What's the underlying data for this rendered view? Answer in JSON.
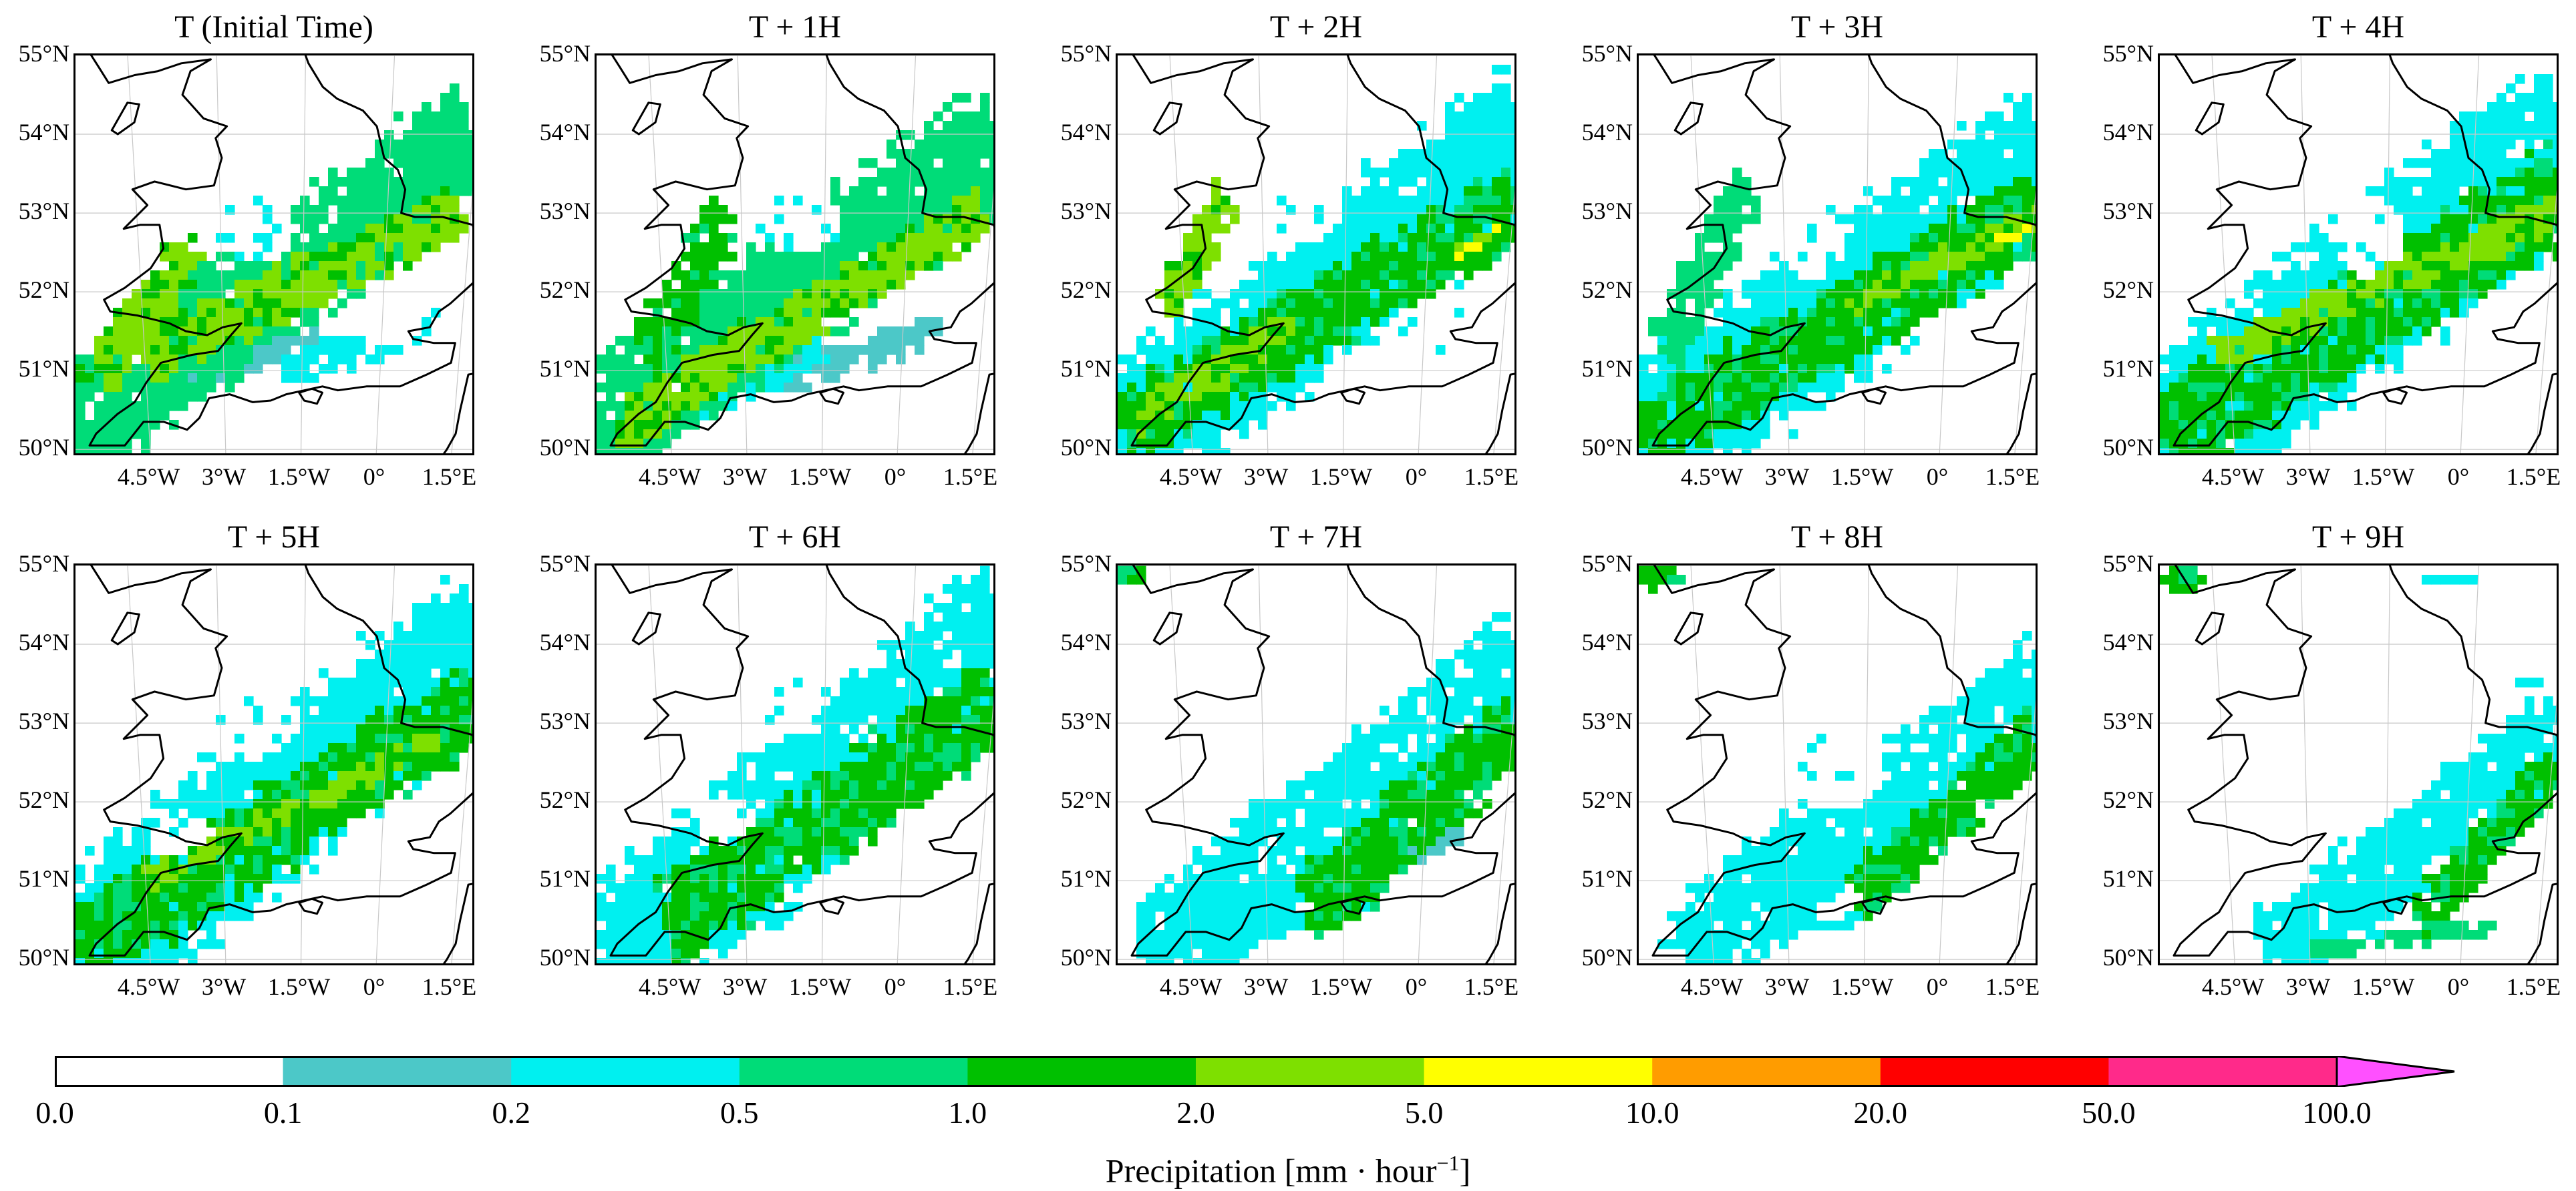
{
  "panels": [
    {
      "title": "T (Initial Time)",
      "rain": [
        {
          "k": "band",
          "x1": -5.9,
          "y1": 50.3,
          "x2": 1.8,
          "y2": 53.9,
          "w": 1.15,
          "lv": 3,
          "a": 0.95
        },
        {
          "k": "band",
          "x1": -4.5,
          "y1": 51.2,
          "x2": 1.6,
          "y2": 53.0,
          "w": 0.55,
          "lv": 5,
          "a": 0.9
        },
        {
          "k": "band",
          "x1": -5.5,
          "y1": 51.0,
          "x2": -3.6,
          "y2": 52.6,
          "w": 0.5,
          "lv": 5,
          "a": 0.9
        },
        {
          "k": "band",
          "x1": -5.9,
          "y1": 51.0,
          "x2": -3.8,
          "y2": 51.6,
          "w": 0.3,
          "lv": 4,
          "a": 0.8
        },
        {
          "k": "band",
          "x1": -1.8,
          "y1": 51.0,
          "x2": 1.2,
          "y2": 51.6,
          "w": 0.35,
          "lv": 2,
          "a": 0.9
        },
        {
          "k": "band",
          "x1": -3.8,
          "y1": 50.8,
          "x2": -1.2,
          "y2": 51.4,
          "w": 0.25,
          "lv": 1,
          "a": 0.9
        },
        {
          "k": "hole",
          "x": -2.4,
          "y": 52.8,
          "rx": 0.8,
          "ry": 0.45
        },
        {
          "k": "hole",
          "x": 0.2,
          "y": 51.6,
          "rx": 0.7,
          "ry": 0.3
        }
      ]
    },
    {
      "title": "T + 1H",
      "rain": [
        {
          "k": "band",
          "x1": -5.9,
          "y1": 50.3,
          "x2": 1.9,
          "y2": 53.8,
          "w": 1.2,
          "lv": 3,
          "a": 0.95
        },
        {
          "k": "band",
          "x1": -5.5,
          "y1": 50.3,
          "x2": 1.6,
          "y2": 53.0,
          "w": 0.5,
          "lv": 5,
          "a": 0.95
        },
        {
          "k": "band",
          "x1": -5.0,
          "y1": 51.2,
          "x2": -3.4,
          "y2": 53.0,
          "w": 0.5,
          "lv": 4,
          "a": 0.9
        },
        {
          "k": "band",
          "x1": -2.2,
          "y1": 50.9,
          "x2": 0.8,
          "y2": 51.5,
          "w": 0.3,
          "lv": 1,
          "a": 0.9
        },
        {
          "k": "band",
          "x1": -4.0,
          "y1": 50.5,
          "x2": -1.5,
          "y2": 51.3,
          "w": 0.3,
          "lv": 2,
          "a": 0.9
        },
        {
          "k": "hole",
          "x": -2.0,
          "y": 52.9,
          "rx": 0.9,
          "ry": 0.4
        }
      ]
    },
    {
      "title": "T + 2H",
      "rain": [
        {
          "k": "band",
          "x1": -6.0,
          "y1": 50.0,
          "x2": 2.0,
          "y2": 53.9,
          "w": 1.45,
          "lv": 2,
          "a": 0.95
        },
        {
          "k": "band",
          "x1": -5.8,
          "y1": 50.3,
          "x2": 1.9,
          "y2": 53.1,
          "w": 0.75,
          "lv": 4,
          "a": 0.95
        },
        {
          "k": "band",
          "x1": -5.6,
          "y1": 50.4,
          "x2": -2.5,
          "y2": 51.6,
          "w": 0.35,
          "lv": 5,
          "a": 0.95
        },
        {
          "k": "band",
          "x1": 0.8,
          "y1": 52.5,
          "x2": 1.7,
          "y2": 52.8,
          "w": 0.12,
          "lv": 6,
          "a": 0.9
        },
        {
          "k": "band",
          "x1": -5.0,
          "y1": 51.8,
          "x2": -3.8,
          "y2": 53.2,
          "w": 0.4,
          "lv": 5,
          "a": 0.9
        },
        {
          "k": "hole",
          "x": -2.2,
          "y": 53.0,
          "rx": 0.7,
          "ry": 0.35
        },
        {
          "k": "hole",
          "x": 0.3,
          "y": 51.5,
          "rx": 1.0,
          "ry": 0.3
        }
      ]
    },
    {
      "title": "T + 3H",
      "rain": [
        {
          "k": "band",
          "x1": -6.0,
          "y1": 50.0,
          "x2": 2.0,
          "y2": 53.6,
          "w": 1.5,
          "lv": 2,
          "a": 0.95
        },
        {
          "k": "band",
          "x1": -5.8,
          "y1": 50.2,
          "x2": 1.9,
          "y2": 53.0,
          "w": 0.8,
          "lv": 4,
          "a": 0.95
        },
        {
          "k": "band",
          "x1": -2.0,
          "y1": 51.8,
          "x2": 1.9,
          "y2": 52.9,
          "w": 0.25,
          "lv": 5,
          "a": 0.95
        },
        {
          "k": "band",
          "x1": 1.0,
          "y1": 52.6,
          "x2": 1.8,
          "y2": 52.8,
          "w": 0.1,
          "lv": 6,
          "a": 0.9
        },
        {
          "k": "band",
          "x1": -5.5,
          "y1": 51.3,
          "x2": -3.8,
          "y2": 53.3,
          "w": 0.5,
          "lv": 3,
          "a": 0.9
        },
        {
          "k": "hole",
          "x": -2.5,
          "y": 52.7,
          "rx": 0.7,
          "ry": 0.55
        }
      ]
    },
    {
      "title": "T + 4H",
      "rain": [
        {
          "k": "band",
          "x1": -6.0,
          "y1": 50.0,
          "x2": 2.0,
          "y2": 53.9,
          "w": 1.6,
          "lv": 2,
          "a": 0.95
        },
        {
          "k": "band",
          "x1": -5.8,
          "y1": 50.2,
          "x2": 1.9,
          "y2": 53.2,
          "w": 0.95,
          "lv": 4,
          "a": 0.95
        },
        {
          "k": "band",
          "x1": -4.8,
          "y1": 51.2,
          "x2": 1.9,
          "y2": 53.0,
          "w": 0.35,
          "lv": 5,
          "a": 0.9
        },
        {
          "k": "hole",
          "x": -1.8,
          "y": 52.7,
          "rx": 0.65,
          "ry": 0.55
        }
      ]
    },
    {
      "title": "T + 5H",
      "rain": [
        {
          "k": "band",
          "x1": -6.0,
          "y1": 50.0,
          "x2": 2.0,
          "y2": 54.0,
          "w": 1.5,
          "lv": 2,
          "a": 0.95
        },
        {
          "k": "band",
          "x1": -5.8,
          "y1": 50.2,
          "x2": 1.9,
          "y2": 53.2,
          "w": 0.85,
          "lv": 4,
          "a": 0.95
        },
        {
          "k": "band",
          "x1": -4.5,
          "y1": 51.0,
          "x2": 1.2,
          "y2": 52.8,
          "w": 0.25,
          "lv": 5,
          "a": 0.85
        },
        {
          "k": "hole",
          "x": -2.4,
          "y": 53.0,
          "rx": 0.8,
          "ry": 0.45
        },
        {
          "k": "hole",
          "x": -3.8,
          "y": 51.5,
          "rx": 0.8,
          "ry": 0.3
        }
      ]
    },
    {
      "title": "T + 6H",
      "rain": [
        {
          "k": "band",
          "x1": -5.8,
          "y1": 50.0,
          "x2": 2.0,
          "y2": 54.1,
          "w": 1.45,
          "lv": 2,
          "a": 0.9
        },
        {
          "k": "band",
          "x1": -4.5,
          "y1": 50.5,
          "x2": 1.9,
          "y2": 53.2,
          "w": 0.9,
          "lv": 4,
          "a": 0.95
        },
        {
          "k": "band",
          "x1": -5.5,
          "y1": 50.1,
          "x2": -2.0,
          "y2": 50.6,
          "w": 0.25,
          "lv": 2,
          "a": 0.95
        },
        {
          "k": "band",
          "x1": -1.5,
          "y1": 51.5,
          "x2": 1.5,
          "y2": 52.8,
          "w": 0.3,
          "lv": 4,
          "a": 0.9
        },
        {
          "k": "hole",
          "x": -2.2,
          "y": 53.2,
          "rx": 0.7,
          "ry": 0.35
        },
        {
          "k": "hole",
          "x": -3.5,
          "y": 51.8,
          "rx": 0.6,
          "ry": 0.3
        }
      ]
    },
    {
      "title": "T + 7H",
      "rain": [
        {
          "k": "band",
          "x1": -5.2,
          "y1": 50.0,
          "x2": 2.0,
          "y2": 53.6,
          "w": 1.2,
          "lv": 2,
          "a": 0.9
        },
        {
          "k": "band",
          "x1": -2.2,
          "y1": 50.6,
          "x2": 1.9,
          "y2": 52.9,
          "w": 0.75,
          "lv": 4,
          "a": 0.95
        },
        {
          "k": "band",
          "x1": -5.6,
          "y1": 50.2,
          "x2": -1.0,
          "y2": 50.6,
          "w": 0.2,
          "lv": 2,
          "a": 0.9
        },
        {
          "k": "band",
          "x1": -0.8,
          "y1": 51.1,
          "x2": 0.8,
          "y2": 51.6,
          "w": 0.2,
          "lv": 1,
          "a": 0.9
        },
        {
          "k": "blob",
          "x": -5.8,
          "y": 54.9,
          "rx": 0.3,
          "ry": 0.12,
          "lv": 4,
          "a": 0.9
        }
      ]
    },
    {
      "title": "T + 8H",
      "rain": [
        {
          "k": "band",
          "x1": -5.0,
          "y1": 50.1,
          "x2": 2.0,
          "y2": 53.4,
          "w": 1.05,
          "lv": 2,
          "a": 0.9
        },
        {
          "k": "band",
          "x1": -1.6,
          "y1": 50.8,
          "x2": 1.9,
          "y2": 52.8,
          "w": 0.55,
          "lv": 4,
          "a": 0.95
        },
        {
          "k": "band",
          "x1": -5.5,
          "y1": 50.2,
          "x2": -1.5,
          "y2": 50.5,
          "w": 0.15,
          "lv": 2,
          "a": 0.9
        },
        {
          "k": "blob",
          "x": -5.6,
          "y": 54.85,
          "rx": 0.45,
          "ry": 0.15,
          "lv": 4,
          "a": 0.9
        },
        {
          "k": "hole",
          "x": -2.0,
          "y": 52.4,
          "rx": 0.9,
          "ry": 0.5
        }
      ]
    },
    {
      "title": "T + 9H",
      "rain": [
        {
          "k": "band",
          "x1": -3.8,
          "y1": 50.0,
          "x2": 2.0,
          "y2": 52.8,
          "w": 0.95,
          "lv": 2,
          "a": 0.9
        },
        {
          "k": "band",
          "x1": -0.8,
          "y1": 50.5,
          "x2": 1.9,
          "y2": 52.4,
          "w": 0.45,
          "lv": 4,
          "a": 0.95
        },
        {
          "k": "band",
          "x1": -3.0,
          "y1": 50.1,
          "x2": 0.6,
          "y2": 50.4,
          "w": 0.15,
          "lv": 3,
          "a": 0.9
        },
        {
          "k": "blob",
          "x": -5.6,
          "y": 54.8,
          "rx": 0.45,
          "ry": 0.18,
          "lv": 4,
          "a": 0.9
        },
        {
          "k": "blob",
          "x": -0.2,
          "y": 54.8,
          "rx": 0.6,
          "ry": 0.06,
          "lv": 2,
          "a": 0.8
        },
        {
          "k": "blob",
          "x": 1.5,
          "y": 53.5,
          "rx": 0.4,
          "ry": 0.08,
          "lv": 2,
          "a": 0.8
        }
      ]
    }
  ],
  "lat_ticks": [
    {
      "label": "55°N",
      "value": 55
    },
    {
      "label": "54°N",
      "value": 54
    },
    {
      "label": "53°N",
      "value": 53
    },
    {
      "label": "52°N",
      "value": 52
    },
    {
      "label": "51°N",
      "value": 51
    },
    {
      "label": "50°N",
      "value": 50
    }
  ],
  "lon_ticks": [
    {
      "label": "4.5°W",
      "value": -4.5
    },
    {
      "label": "3°W",
      "value": -3
    },
    {
      "label": "1.5°W",
      "value": -1.5
    },
    {
      "label": "0°",
      "value": 0
    },
    {
      "label": "1.5°E",
      "value": 1.5
    }
  ],
  "extent": {
    "lon_min": -6.0,
    "lon_max": 2.0,
    "lat_min": 49.9,
    "lat_max": 55.0
  },
  "colorbar": {
    "label": "Precipitation [mm · hour",
    "label_exponent": "−1",
    "label_close": "]",
    "ticks": [
      "0.0",
      "0.1",
      "0.2",
      "0.5",
      "1.0",
      "2.0",
      "5.0",
      "10.0",
      "20.0",
      "50.0",
      "100.0"
    ],
    "colors": [
      "#ffffff",
      "#4cc8c8",
      "#00f0f0",
      "#00dc78",
      "#00c000",
      "#7ee000",
      "#ffff00",
      "#ff9c00",
      "#ff0000",
      "#ff2a8a",
      "#ff50ff"
    ],
    "extend": "max"
  },
  "coastline": [
    [
      -1.6,
      55.6
    ],
    [
      -1.55,
      55.1
    ],
    [
      -1.45,
      54.9
    ],
    [
      -1.2,
      54.6
    ],
    [
      -0.95,
      54.45
    ],
    [
      -0.5,
      54.3
    ],
    [
      -0.25,
      54.1
    ],
    [
      -0.1,
      53.7
    ],
    [
      0.15,
      53.55
    ],
    [
      0.3,
      53.3
    ],
    [
      0.25,
      53.0
    ],
    [
      0.5,
      52.95
    ],
    [
      1.0,
      52.95
    ],
    [
      1.55,
      52.85
    ],
    [
      1.75,
      52.45
    ],
    [
      1.7,
      52.15
    ],
    [
      1.25,
      51.85
    ],
    [
      1.05,
      51.75
    ],
    [
      0.9,
      51.55
    ],
    [
      0.5,
      51.5
    ],
    [
      0.6,
      51.4
    ],
    [
      1.0,
      51.35
    ],
    [
      1.4,
      51.35
    ],
    [
      1.35,
      51.1
    ],
    [
      0.9,
      50.95
    ],
    [
      0.4,
      50.8
    ],
    [
      -0.25,
      50.8
    ],
    [
      -0.8,
      50.75
    ],
    [
      -1.1,
      50.8
    ],
    [
      -1.45,
      50.75
    ],
    [
      -1.8,
      50.7
    ],
    [
      -2.1,
      50.62
    ],
    [
      -2.45,
      50.6
    ],
    [
      -2.9,
      50.7
    ],
    [
      -3.3,
      50.65
    ],
    [
      -3.5,
      50.4
    ],
    [
      -3.75,
      50.25
    ],
    [
      -4.2,
      50.35
    ],
    [
      -4.6,
      50.35
    ],
    [
      -5.0,
      50.05
    ],
    [
      -5.7,
      50.05
    ],
    [
      -5.55,
      50.2
    ],
    [
      -5.1,
      50.45
    ],
    [
      -4.75,
      50.6
    ],
    [
      -4.5,
      50.85
    ],
    [
      -4.2,
      51.1
    ],
    [
      -3.6,
      51.2
    ],
    [
      -3.1,
      51.25
    ],
    [
      -2.85,
      51.45
    ],
    [
      -2.65,
      51.6
    ],
    [
      -3.0,
      51.55
    ],
    [
      -3.3,
      51.45
    ],
    [
      -3.7,
      51.5
    ],
    [
      -4.0,
      51.6
    ],
    [
      -4.3,
      51.65
    ],
    [
      -4.6,
      51.7
    ],
    [
      -5.1,
      51.75
    ],
    [
      -5.2,
      51.9
    ],
    [
      -4.8,
      52.05
    ],
    [
      -4.3,
      52.3
    ],
    [
      -4.05,
      52.55
    ],
    [
      -4.1,
      52.85
    ],
    [
      -4.45,
      52.85
    ],
    [
      -4.75,
      52.8
    ],
    [
      -4.3,
      53.1
    ],
    [
      -4.55,
      53.3
    ],
    [
      -4.15,
      53.4
    ],
    [
      -3.6,
      53.3
    ],
    [
      -3.1,
      53.35
    ],
    [
      -2.95,
      53.7
    ],
    [
      -3.05,
      53.95
    ],
    [
      -2.85,
      54.1
    ],
    [
      -3.25,
      54.2
    ],
    [
      -3.6,
      54.5
    ],
    [
      -3.45,
      54.8
    ],
    [
      -3.1,
      54.95
    ],
    [
      -3.6,
      54.9
    ],
    [
      -4.0,
      54.8
    ],
    [
      -4.4,
      54.75
    ],
    [
      -4.85,
      54.65
    ],
    [
      -5.0,
      54.85
    ],
    [
      -5.15,
      55.05
    ],
    [
      -4.8,
      55.15
    ],
    [
      -4.75,
      55.45
    ]
  ],
  "islands": [
    [
      [
        -4.85,
        54.05
      ],
      [
        -4.55,
        54.4
      ],
      [
        -4.35,
        54.38
      ],
      [
        -4.45,
        54.15
      ],
      [
        -4.75,
        54.0
      ],
      [
        -4.85,
        54.05
      ]
    ],
    [
      [
        -1.55,
        50.72
      ],
      [
        -1.3,
        50.77
      ],
      [
        -1.1,
        50.72
      ],
      [
        -1.2,
        50.58
      ],
      [
        -1.45,
        50.62
      ],
      [
        -1.55,
        50.72
      ]
    ],
    [
      [
        -5.95,
        55.0
      ],
      [
        -5.8,
        54.75
      ],
      [
        -5.65,
        54.55
      ],
      [
        -5.85,
        54.9
      ],
      [
        -5.95,
        55.0
      ]
    ],
    [
      [
        -5.75,
        55.3
      ],
      [
        -5.9,
        54.95
      ],
      [
        -5.7,
        54.62
      ],
      [
        -5.45,
        54.9
      ],
      [
        -5.75,
        55.3
      ]
    ]
  ],
  "france_coast": [
    [
      2.1,
      51.0
    ],
    [
      1.7,
      50.95
    ],
    [
      1.6,
      50.5
    ],
    [
      1.55,
      50.2
    ],
    [
      1.4,
      50.0
    ],
    [
      1.2,
      49.8
    ]
  ]
}
